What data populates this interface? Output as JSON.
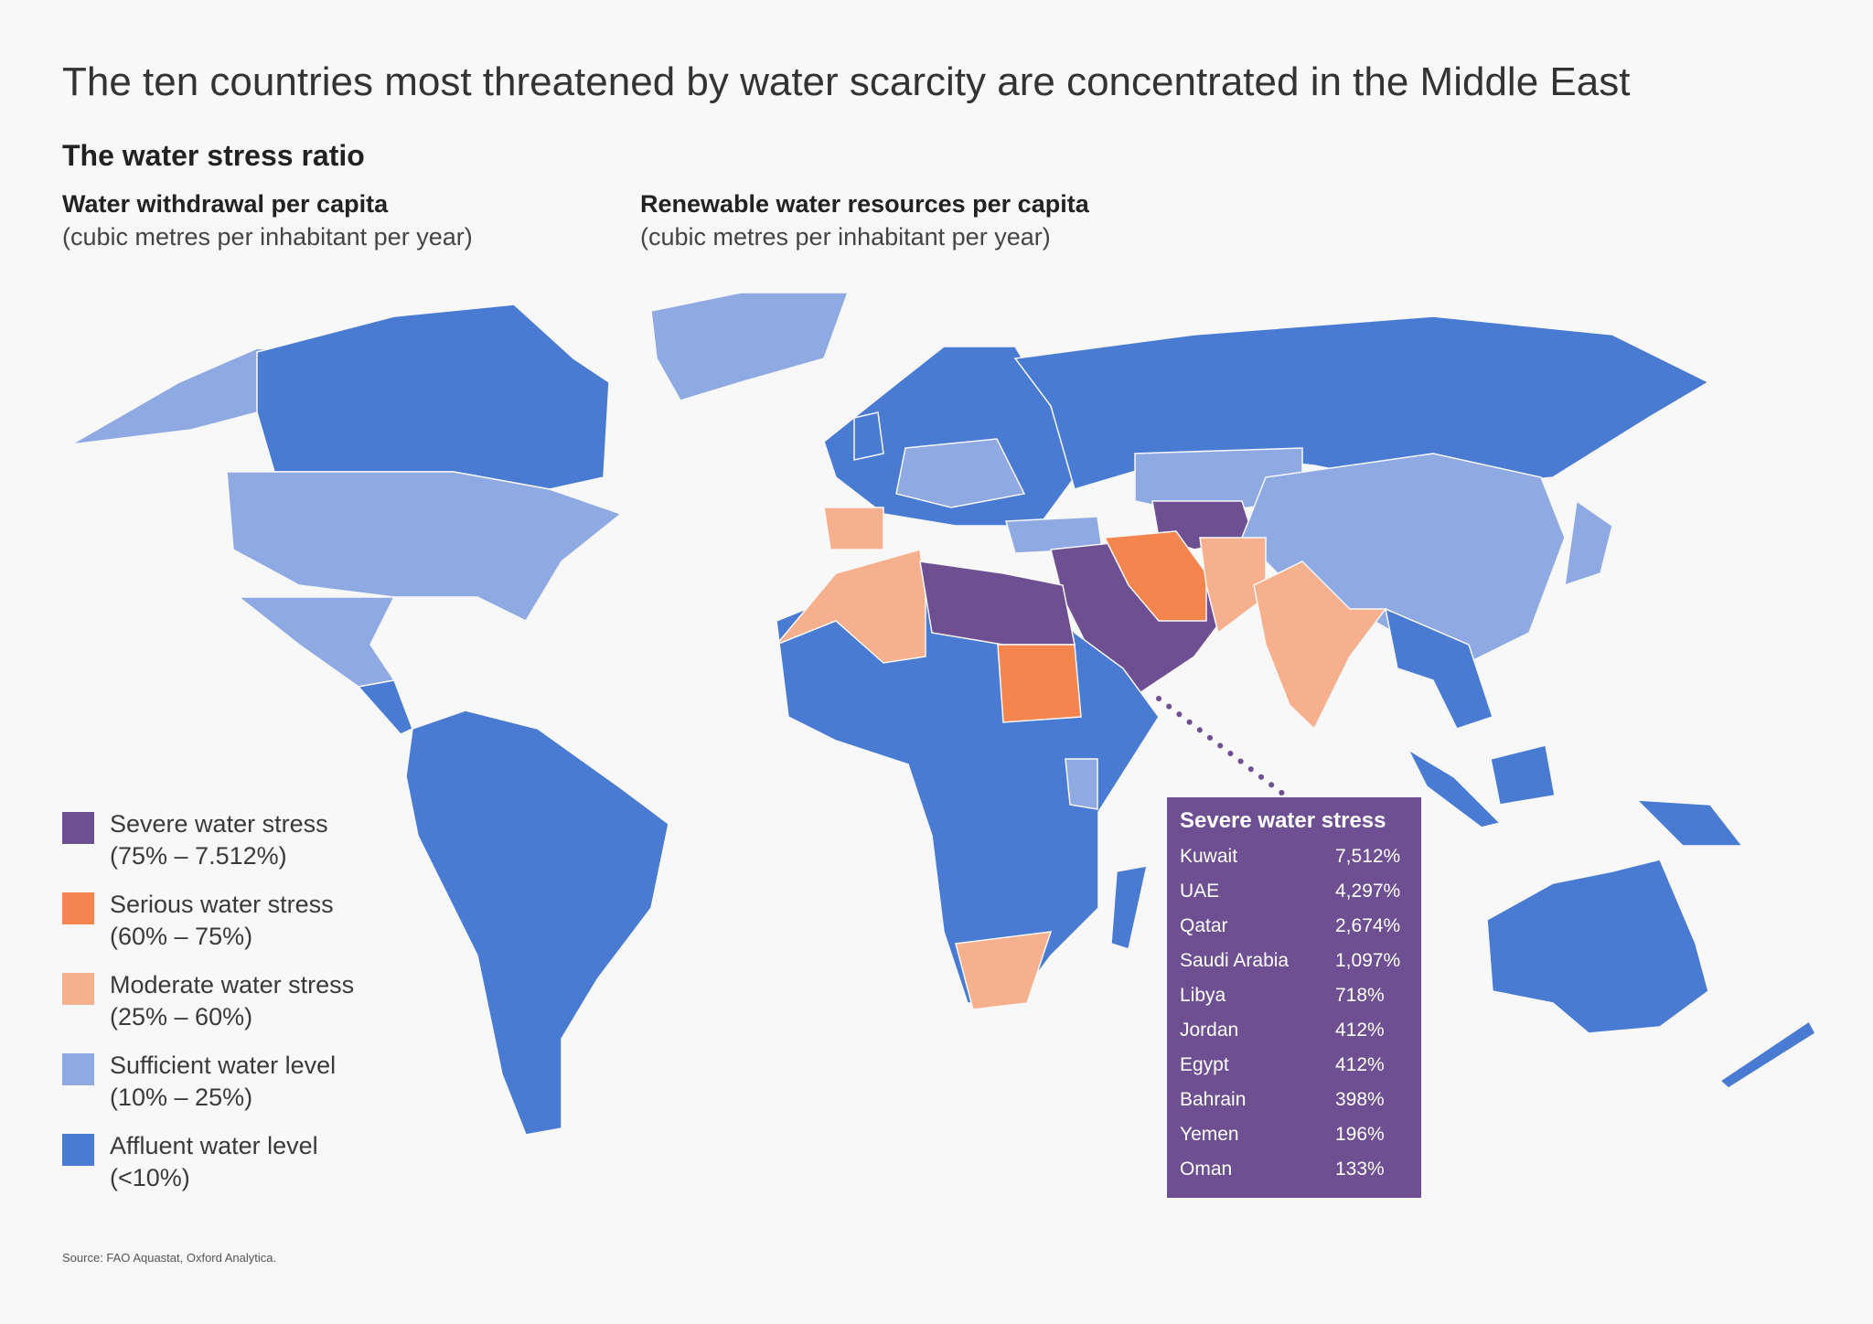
{
  "title": "The ten countries most threatened by water scarcity are concentrated in the Middle East",
  "subtitle": "The water stress ratio",
  "columns": [
    {
      "heading": "Water withdrawal per capita",
      "unit": "(cubic metres per inhabitant per year)"
    },
    {
      "heading": "Renewable water resources per capita",
      "unit": "(cubic metres per inhabitant per year)"
    }
  ],
  "legend": [
    {
      "label": "Severe water stress",
      "range": "(75% – 7.512%)",
      "color": "#6e4f91"
    },
    {
      "label": "Serious water stress",
      "range": "(60% – 75%)",
      "color": "#f5854e"
    },
    {
      "label": "Moderate water stress",
      "range": "(25% – 60%)",
      "color": "#f7b08e"
    },
    {
      "label": "Sufficient water level",
      "range": "(10% – 25%)",
      "color": "#8faae3"
    },
    {
      "label": "Affluent water level",
      "range": "(<10%)",
      "color": "#4a7bd3"
    }
  ],
  "severe_table": {
    "heading": "Severe water stress",
    "rows": [
      {
        "country": "Kuwait",
        "value": "7,512%"
      },
      {
        "country": "UAE",
        "value": "4,297%"
      },
      {
        "country": "Qatar",
        "value": "2,674%"
      },
      {
        "country": "Saudi Arabia",
        "value": "1,097%"
      },
      {
        "country": "Libya",
        "value": "718%"
      },
      {
        "country": "Jordan",
        "value": "412%"
      },
      {
        "country": "Egypt",
        "value": "412%"
      },
      {
        "country": "Bahrain",
        "value": "398%"
      },
      {
        "country": "Yemen",
        "value": "196%"
      },
      {
        "country": "Oman",
        "value": "133%"
      }
    ]
  },
  "source": "Source: FAO Aquastat, Oxford Analytica."
}
